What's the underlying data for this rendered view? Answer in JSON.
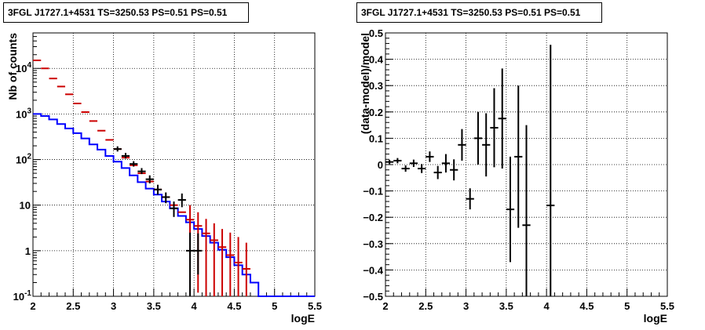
{
  "chart_data": [
    {
      "type": "line",
      "title": "3FGL J1727.1+4531 TS=3250.53 PS=0.51 PS=0.51",
      "xlabel": "logE",
      "ylabel": "Nb of counts",
      "xlim": [
        2,
        5.5
      ],
      "ylim": [
        0.1,
        60000
      ],
      "y_scale": "log",
      "grid": true,
      "x_ticks": [
        "2",
        "2.5",
        "3",
        "3.5",
        "4",
        "4.5",
        "5",
        "5.5"
      ],
      "y_ticks": [
        {
          "value": 0.1,
          "label": "10",
          "exp": "-1"
        },
        {
          "value": 1,
          "label": "1",
          "exp": ""
        },
        {
          "value": 10,
          "label": "10",
          "exp": ""
        },
        {
          "value": 100,
          "label": "10",
          "exp": "2"
        },
        {
          "value": 1000,
          "label": "10",
          "exp": "3"
        },
        {
          "value": 10000,
          "label": "10",
          "exp": "4"
        }
      ],
      "bin_edges": [
        2.0,
        2.1,
        2.2,
        2.3,
        2.4,
        2.5,
        2.6,
        2.7,
        2.8,
        2.9,
        3.0,
        3.1,
        3.2,
        3.3,
        3.4,
        3.5,
        3.6,
        3.7,
        3.8,
        3.9,
        4.0,
        4.1,
        4.2,
        4.3,
        4.4,
        4.5,
        4.6,
        4.7,
        4.8,
        4.9,
        5.0,
        5.1,
        5.2,
        5.3,
        5.4,
        5.5
      ],
      "series": [
        {
          "color": "#0000ff",
          "style": "step",
          "values": [
            1000,
            900,
            760,
            600,
            480,
            380,
            290,
            215,
            165,
            120,
            90,
            65,
            45,
            32,
            23,
            17,
            12,
            8.5,
            5.8,
            4.2,
            3,
            2.1,
            1.5,
            1.05,
            0.72,
            0.48,
            0.3,
            0.2,
            0.1,
            0.1,
            0.1,
            0.1,
            0.1,
            0.1,
            0.1
          ]
        },
        {
          "color": "#cc0000",
          "style": "errorbar",
          "x": [
            2.05,
            2.15,
            2.25,
            2.35,
            2.45,
            2.55,
            2.65,
            2.75,
            2.85,
            2.95,
            3.05,
            3.15,
            3.25,
            3.35,
            3.45,
            3.55,
            3.65,
            3.75,
            3.85,
            3.95,
            4.05,
            4.15,
            4.25,
            4.35,
            4.45,
            4.55,
            4.65
          ],
          "y": [
            15000,
            10000,
            6000,
            4000,
            2700,
            1700,
            1100,
            700,
            430,
            270,
            170,
            110,
            75,
            50,
            33,
            22,
            15,
            10,
            7,
            4.8,
            3.5,
            2.4,
            1.7,
            1.2,
            0.8,
            0.55,
            0.4
          ],
          "y_low": [
            15000,
            10000,
            6000,
            4000,
            2700,
            1700,
            1100,
            700,
            430,
            270,
            170,
            110,
            75,
            50,
            33,
            22,
            15,
            10,
            7,
            0.1,
            0.12,
            0.1,
            0.1,
            0.1,
            0.1,
            0.1,
            0.1
          ],
          "y_high": [
            15000,
            10000,
            6000,
            4000,
            2700,
            1700,
            1100,
            700,
            430,
            270,
            170,
            110,
            75,
            50,
            33,
            22,
            15,
            10,
            7,
            10,
            7,
            5,
            4,
            3,
            2.5,
            2,
            1.5
          ]
        },
        {
          "color": "#000000",
          "style": "errorbar",
          "x": [
            3.05,
            3.15,
            3.25,
            3.35,
            3.45,
            3.55,
            3.65,
            3.75,
            3.85,
            3.95,
            4.05
          ],
          "y": [
            170,
            120,
            80,
            55,
            37,
            22,
            15,
            8.5,
            13,
            1,
            1
          ],
          "y_low": [
            150,
            105,
            70,
            48,
            30,
            17,
            11,
            5.5,
            9,
            0.1,
            0.3
          ],
          "y_high": [
            195,
            140,
            92,
            65,
            45,
            28,
            19,
            12,
            18,
            2.5,
            2.4
          ]
        }
      ]
    },
    {
      "type": "scatter",
      "title": "3FGL J1727.1+4531 TS=3250.53 PS=0.51 PS=0.51",
      "xlabel": "logE",
      "ylabel": "(data-model)/model",
      "xlim": [
        2,
        5.5
      ],
      "ylim": [
        -0.5,
        0.5
      ],
      "grid": true,
      "x_ticks": [
        "2",
        "2.5",
        "3",
        "3.5",
        "4",
        "4.5",
        "5",
        "5.5"
      ],
      "y_ticks": [
        "−0.5",
        "−0.4",
        "−0.3",
        "−0.2",
        "−0.1",
        "0",
        "0.1",
        "0.2",
        "0.3",
        "0.4",
        "0.5"
      ],
      "series": [
        {
          "color": "#000000",
          "x": [
            2.05,
            2.15,
            2.25,
            2.35,
            2.45,
            2.55,
            2.65,
            2.75,
            2.85,
            2.95,
            3.05,
            3.15,
            3.25,
            3.35,
            3.45,
            3.55,
            3.65,
            3.75,
            4.05
          ],
          "y": [
            0.01,
            0.015,
            -0.015,
            0.005,
            -0.015,
            0.03,
            -0.03,
            0.005,
            -0.02,
            0.075,
            -0.13,
            0.1,
            0.075,
            0.14,
            0.175,
            -0.17,
            0.03,
            -0.23,
            -0.155
          ],
          "y_err": [
            0.008,
            0.01,
            0.012,
            0.014,
            0.017,
            0.02,
            0.025,
            0.035,
            0.04,
            0.06,
            0.04,
            0.1,
            0.12,
            0.15,
            0.19,
            0.2,
            0.27,
            0.38,
            0.61
          ]
        }
      ]
    }
  ]
}
